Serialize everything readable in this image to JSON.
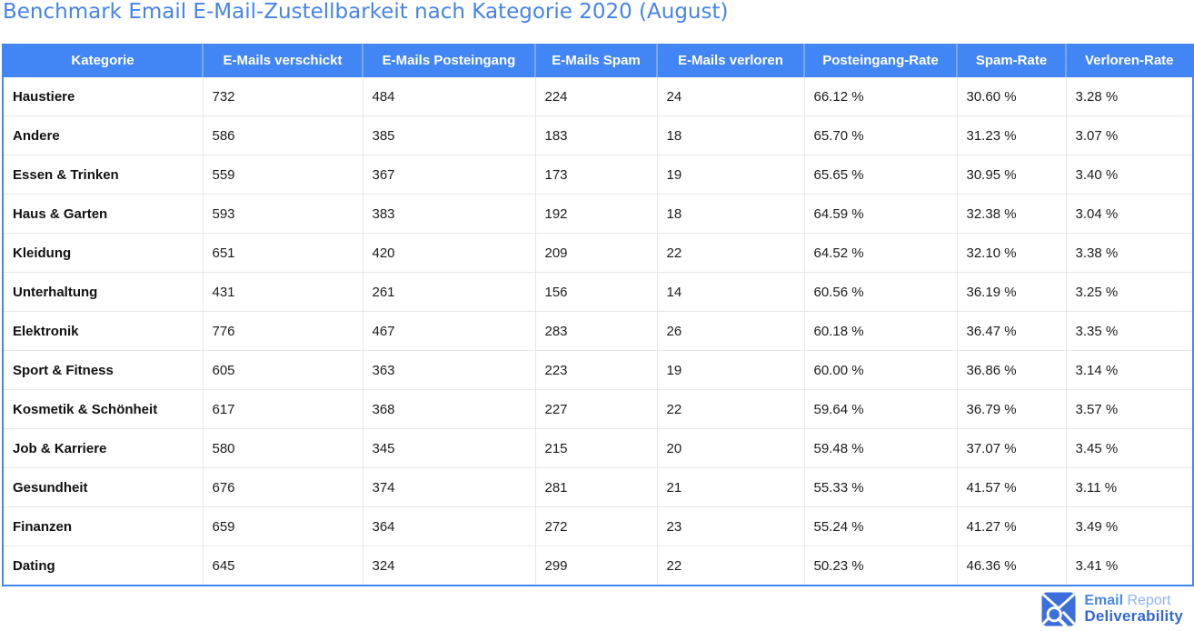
{
  "title": "Benchmark Email E-Mail-Zustellbarkeit nach Kategorie 2020 (August)",
  "colors": {
    "title_text": "#4583ec",
    "header_bg": "#4285f4",
    "table_border": "#4285f4",
    "row_divider": "#e5e7e9",
    "logo_blue": "#3b6fdb"
  },
  "table": {
    "columns": [
      "Kategorie",
      "E-Mails verschickt",
      "E-Mails Posteingang",
      "E-Mails Spam",
      "E-Mails verloren",
      "Posteingang-Rate",
      "Spam-Rate",
      "Verloren-Rate"
    ],
    "rows": [
      [
        "Haustiere",
        "732",
        "484",
        "224",
        "24",
        "66.12 %",
        "30.60 %",
        "3.28 %"
      ],
      [
        "Andere",
        "586",
        "385",
        "183",
        "18",
        "65.70 %",
        "31.23 %",
        "3.07 %"
      ],
      [
        "Essen & Trinken",
        "559",
        "367",
        "173",
        "19",
        "65.65 %",
        "30.95 %",
        "3.40 %"
      ],
      [
        "Haus & Garten",
        "593",
        "383",
        "192",
        "18",
        "64.59 %",
        "32.38 %",
        "3.04 %"
      ],
      [
        "Kleidung",
        "651",
        "420",
        "209",
        "22",
        "64.52 %",
        "32.10 %",
        "3.38 %"
      ],
      [
        "Unterhaltung",
        "431",
        "261",
        "156",
        "14",
        "60.56 %",
        "36.19 %",
        "3.25 %"
      ],
      [
        "Elektronik",
        "776",
        "467",
        "283",
        "26",
        "60.18 %",
        "36.47 %",
        "3.35 %"
      ],
      [
        "Sport & Fitness",
        "605",
        "363",
        "223",
        "19",
        "60.00 %",
        "36.86 %",
        "3.14 %"
      ],
      [
        "Kosmetik & Schönheit",
        "617",
        "368",
        "227",
        "22",
        "59.64 %",
        "36.79 %",
        "3.57 %"
      ],
      [
        "Job & Karriere",
        "580",
        "345",
        "215",
        "20",
        "59.48 %",
        "37.07 %",
        "3.45 %"
      ],
      [
        "Gesundheit",
        "676",
        "374",
        "281",
        "21",
        "55.33 %",
        "41.57 %",
        "3.11 %"
      ],
      [
        "Finanzen",
        "659",
        "364",
        "272",
        "23",
        "55.24 %",
        "41.27 %",
        "3.49 %"
      ],
      [
        "Dating",
        "645",
        "324",
        "299",
        "22",
        "50.23 %",
        "46.36 %",
        "3.41 %"
      ]
    ]
  },
  "logo": {
    "icon": "envelope-magnifier-icon",
    "line1_bold": "Email",
    "line1_regular": "Report",
    "line2": "Deliverability"
  },
  "chart_data": {
    "type": "table",
    "title": "Benchmark Email E-Mail-Zustellbarkeit nach Kategorie 2020 (August)",
    "columns": [
      "Kategorie",
      "E-Mails verschickt",
      "E-Mails Posteingang",
      "E-Mails Spam",
      "E-Mails verloren",
      "Posteingang-Rate",
      "Spam-Rate",
      "Verloren-Rate"
    ],
    "rows": [
      [
        "Haustiere",
        732,
        484,
        224,
        24,
        "66.12 %",
        "30.60 %",
        "3.28 %"
      ],
      [
        "Andere",
        586,
        385,
        183,
        18,
        "65.70 %",
        "31.23 %",
        "3.07 %"
      ],
      [
        "Essen & Trinken",
        559,
        367,
        173,
        19,
        "65.65 %",
        "30.95 %",
        "3.40 %"
      ],
      [
        "Haus & Garten",
        593,
        383,
        192,
        18,
        "64.59 %",
        "32.38 %",
        "3.04 %"
      ],
      [
        "Kleidung",
        651,
        420,
        209,
        22,
        "64.52 %",
        "32.10 %",
        "3.38 %"
      ],
      [
        "Unterhaltung",
        431,
        261,
        156,
        14,
        "60.56 %",
        "36.19 %",
        "3.25 %"
      ],
      [
        "Elektronik",
        776,
        467,
        283,
        26,
        "60.18 %",
        "36.47 %",
        "3.35 %"
      ],
      [
        "Sport & Fitness",
        605,
        363,
        223,
        19,
        "60.00 %",
        "36.86 %",
        "3.14 %"
      ],
      [
        "Kosmetik & Schönheit",
        617,
        368,
        227,
        22,
        "59.64 %",
        "36.79 %",
        "3.57 %"
      ],
      [
        "Job & Karriere",
        580,
        345,
        215,
        20,
        "59.48 %",
        "37.07 %",
        "3.45 %"
      ],
      [
        "Gesundheit",
        676,
        374,
        281,
        21,
        "55.33 %",
        "41.57 %",
        "3.11 %"
      ],
      [
        "Finanzen",
        659,
        364,
        272,
        23,
        "55.24 %",
        "41.27 %",
        "3.49 %"
      ],
      [
        "Dating",
        645,
        324,
        299,
        22,
        "50.23 %",
        "46.36 %",
        "3.41 %"
      ]
    ]
  }
}
